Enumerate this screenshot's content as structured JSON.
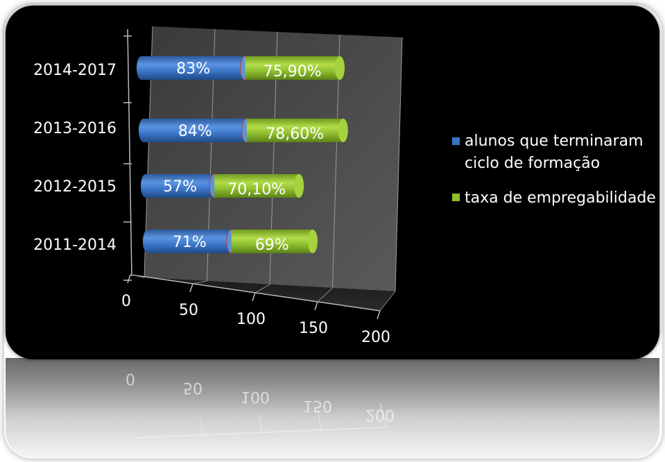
{
  "chart_data": {
    "type": "bar",
    "orientation": "horizontal",
    "stacked": true,
    "style": "3d-cylinder",
    "categories": [
      "2011-2014",
      "2012-2015",
      "2013-2016",
      "2014-2017"
    ],
    "series": [
      {
        "name": "alunos que terminaram ciclo de formação",
        "values": [
          71,
          57,
          84,
          83
        ],
        "labels": [
          "71%",
          "57%",
          "84%",
          "83%"
        ],
        "color": "#3a72c4"
      },
      {
        "name": "taxa de empregabilidade",
        "values": [
          69,
          70.1,
          78.6,
          75.9
        ],
        "labels": [
          "69%",
          "70,10%",
          "78,60%",
          "75,90%"
        ],
        "color": "#8fbf2e"
      }
    ],
    "x_ticks": [
      "0",
      "50",
      "100",
      "150",
      "200"
    ],
    "xlim": [
      0,
      200
    ],
    "grid": true,
    "legend_position": "right"
  },
  "legend": {
    "series1_line1": "alunos que terminaram",
    "series1_line2": "ciclo de formação",
    "series2": "taxa de empregabilidade"
  },
  "colors": {
    "background": "#000000",
    "text": "#ffffff",
    "series1": "#3a72c4",
    "series2": "#8fbf2e"
  }
}
